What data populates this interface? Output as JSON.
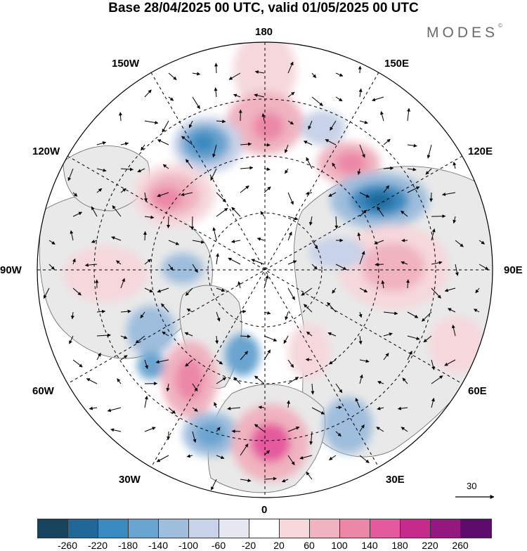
{
  "title": "Base 28/04/2025 00 UTC, valid 01/05/2025 00 UTC",
  "logo": "MODES",
  "logo_mark": "©",
  "longitude_labels": {
    "top": "180",
    "top_left": "150W",
    "top_right": "150E",
    "upper_left": "120W",
    "upper_right": "120E",
    "left": "90W",
    "right": "90E",
    "lower_left": "60W",
    "lower_right": "60E",
    "bottom_left": "30W",
    "bottom_right": "30E",
    "bottom": "0"
  },
  "reference_vector": {
    "value": "30"
  },
  "colorbar": {
    "colors": [
      "#17435f",
      "#1f6898",
      "#3a89c0",
      "#6aa4d0",
      "#9fbedd",
      "#c8d2e8",
      "#e6e6f1",
      "#ffffff",
      "#f6d8dc",
      "#f0b3bf",
      "#ec87a8",
      "#e55a9e",
      "#c72a8d",
      "#94187f",
      "#5d0c6e"
    ],
    "tick_labels": [
      "-260",
      "-220",
      "-180",
      "-140",
      "-100",
      "-60",
      "-20",
      "20",
      "60",
      "100",
      "140",
      "180",
      "220",
      "260"
    ]
  },
  "map": {
    "projection": "north polar stereographic",
    "land_color": "#e9e9e9",
    "ocean_color": "#ffffff"
  }
}
